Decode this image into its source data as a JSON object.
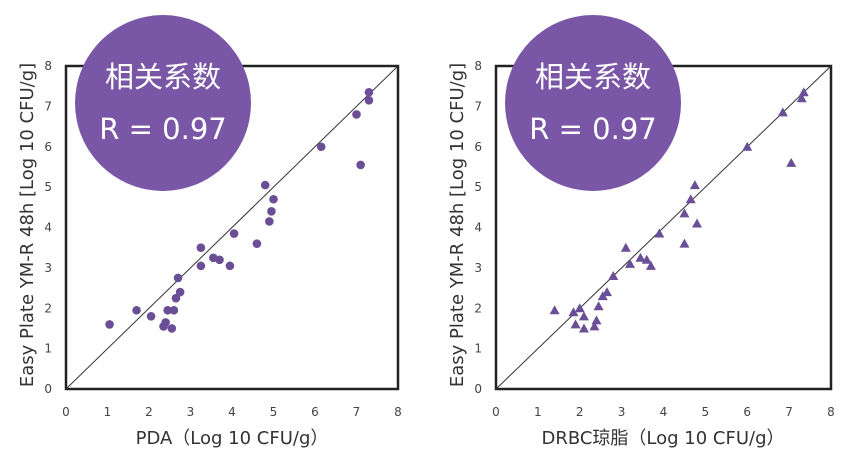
{
  "colors": {
    "marker": "#6a4f96",
    "badge": "#7a56a6",
    "badge_text": "#ffffff",
    "frame": "#222222",
    "diagonal": "#333333"
  },
  "chart_data": [
    {
      "type": "scatter",
      "marker": "circle",
      "title": "",
      "xlabel": "PDA（Log 10 CFU/g）",
      "ylabel": "Easy Plate YM-R 48h [Log 10 CFU/g]",
      "xlim": [
        0,
        8
      ],
      "ylim": [
        0,
        8
      ],
      "x_ticks": [
        "0",
        "1",
        "2",
        "3",
        "4",
        "5",
        "6",
        "7",
        "8"
      ],
      "y_ticks": [
        "0",
        "1",
        "2",
        "3",
        "4",
        "5",
        "6",
        "7",
        "8"
      ],
      "grid": false,
      "reference_line": "y = x",
      "annotation": {
        "line1": "相关系数",
        "line2": "R = 0.97"
      },
      "points": [
        {
          "x": 1.05,
          "y": 1.6
        },
        {
          "x": 1.7,
          "y": 1.95
        },
        {
          "x": 2.05,
          "y": 1.8
        },
        {
          "x": 2.35,
          "y": 1.55
        },
        {
          "x": 2.4,
          "y": 1.65
        },
        {
          "x": 2.45,
          "y": 1.95
        },
        {
          "x": 2.55,
          "y": 1.5
        },
        {
          "x": 2.6,
          "y": 1.95
        },
        {
          "x": 2.65,
          "y": 2.25
        },
        {
          "x": 2.7,
          "y": 2.75
        },
        {
          "x": 2.75,
          "y": 2.4
        },
        {
          "x": 3.25,
          "y": 3.05
        },
        {
          "x": 3.25,
          "y": 3.5
        },
        {
          "x": 3.55,
          "y": 3.25
        },
        {
          "x": 3.7,
          "y": 3.2
        },
        {
          "x": 3.95,
          "y": 3.05
        },
        {
          "x": 4.05,
          "y": 3.85
        },
        {
          "x": 4.6,
          "y": 3.6
        },
        {
          "x": 4.8,
          "y": 5.05
        },
        {
          "x": 4.9,
          "y": 4.15
        },
        {
          "x": 4.95,
          "y": 4.4
        },
        {
          "x": 5.0,
          "y": 4.7
        },
        {
          "x": 6.15,
          "y": 6.0
        },
        {
          "x": 7.0,
          "y": 6.8
        },
        {
          "x": 7.1,
          "y": 5.55
        },
        {
          "x": 7.3,
          "y": 7.15
        },
        {
          "x": 7.3,
          "y": 7.35
        }
      ]
    },
    {
      "type": "scatter",
      "marker": "triangle",
      "title": "",
      "xlabel": "DRBC琼脂（Log 10 CFU/g）",
      "ylabel": "Easy Plate YM-R 48h [Log 10 CFU/g]",
      "xlim": [
        0,
        8
      ],
      "ylim": [
        0,
        8
      ],
      "x_ticks": [
        "0",
        "1",
        "2",
        "3",
        "4",
        "5",
        "6",
        "7",
        "8"
      ],
      "y_ticks": [
        "0",
        "1",
        "2",
        "3",
        "4",
        "5",
        "6",
        "7",
        "8"
      ],
      "grid": false,
      "reference_line": "y = x",
      "annotation": {
        "line1": "相关系数",
        "line2": "R = 0.97"
      },
      "points": [
        {
          "x": 1.4,
          "y": 1.95
        },
        {
          "x": 1.85,
          "y": 1.9
        },
        {
          "x": 1.9,
          "y": 1.6
        },
        {
          "x": 2.0,
          "y": 2.0
        },
        {
          "x": 2.1,
          "y": 1.8
        },
        {
          "x": 2.1,
          "y": 1.5
        },
        {
          "x": 2.35,
          "y": 1.55
        },
        {
          "x": 2.4,
          "y": 1.7
        },
        {
          "x": 2.45,
          "y": 2.05
        },
        {
          "x": 2.55,
          "y": 2.3
        },
        {
          "x": 2.65,
          "y": 2.4
        },
        {
          "x": 2.8,
          "y": 2.8
        },
        {
          "x": 3.1,
          "y": 3.5
        },
        {
          "x": 3.2,
          "y": 3.1
        },
        {
          "x": 3.45,
          "y": 3.25
        },
        {
          "x": 3.6,
          "y": 3.2
        },
        {
          "x": 3.7,
          "y": 3.05
        },
        {
          "x": 3.9,
          "y": 3.85
        },
        {
          "x": 4.5,
          "y": 3.6
        },
        {
          "x": 4.5,
          "y": 4.35
        },
        {
          "x": 4.65,
          "y": 4.7
        },
        {
          "x": 4.75,
          "y": 5.05
        },
        {
          "x": 4.8,
          "y": 4.1
        },
        {
          "x": 6.0,
          "y": 6.0
        },
        {
          "x": 6.85,
          "y": 6.85
        },
        {
          "x": 7.05,
          "y": 5.6
        },
        {
          "x": 7.3,
          "y": 7.2
        },
        {
          "x": 7.35,
          "y": 7.35
        }
      ]
    }
  ]
}
